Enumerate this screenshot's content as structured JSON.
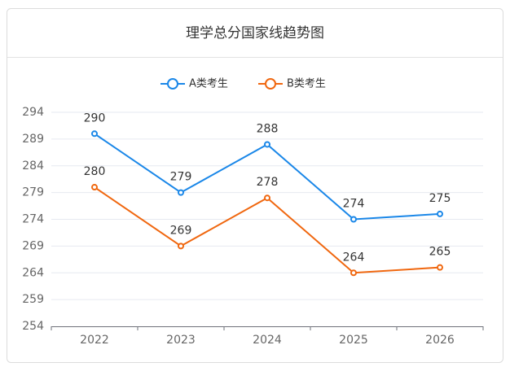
{
  "chart_data": {
    "type": "line",
    "title": "理学总分国家线趋势图",
    "categories": [
      "2022",
      "2023",
      "2024",
      "2025",
      "2026"
    ],
    "series": [
      {
        "name": "A类考生",
        "color": "#1a87e8",
        "values": [
          290,
          279,
          288,
          274,
          275
        ]
      },
      {
        "name": "B类考生",
        "color": "#f0670f",
        "values": [
          280,
          269,
          278,
          264,
          265
        ]
      }
    ],
    "ylim": [
      254,
      294
    ],
    "yticks": [
      254,
      259,
      264,
      269,
      274,
      279,
      284,
      289,
      294
    ],
    "grid": true
  }
}
